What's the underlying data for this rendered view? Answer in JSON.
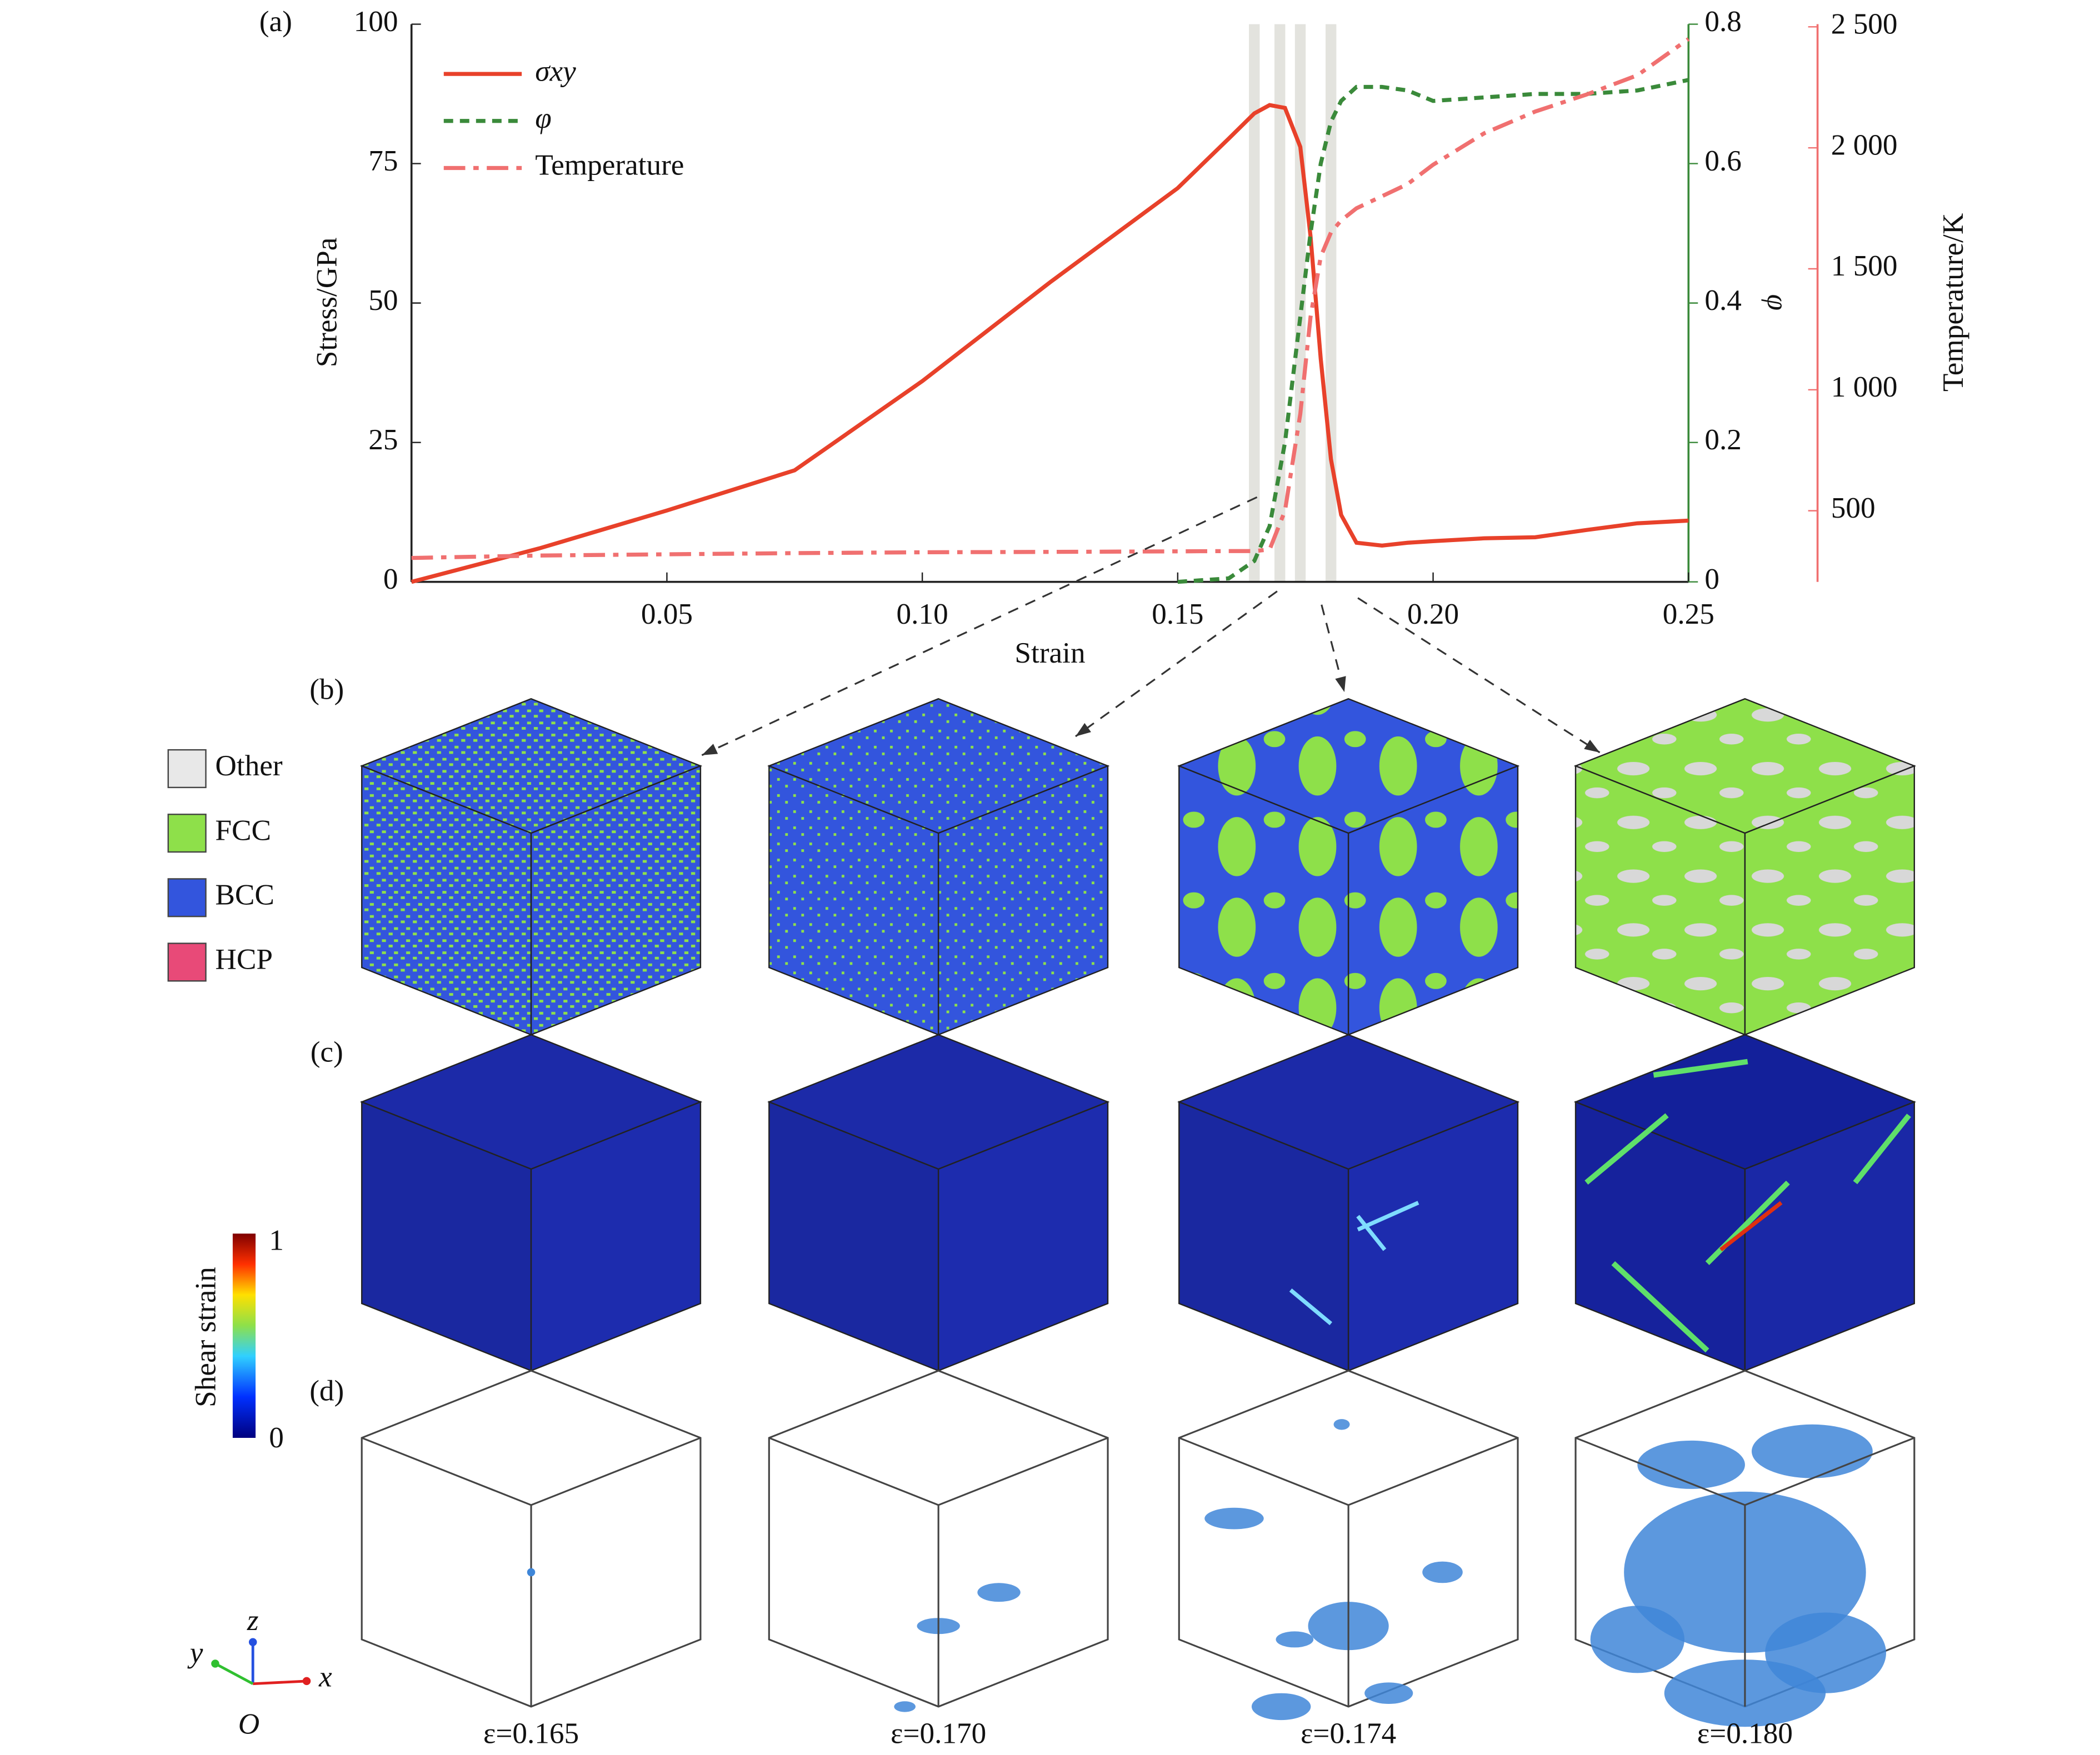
{
  "chart_data": {
    "type": "line",
    "x_label": "Strain",
    "y_label": "Stress/GPa",
    "y2_label": "φ",
    "y3_label": "Temperature/K",
    "x": [
      0,
      0.025,
      0.05,
      0.075,
      0.1,
      0.125,
      0.15,
      0.16,
      0.165,
      0.168,
      0.171,
      0.174,
      0.176,
      0.178,
      0.18,
      0.182,
      0.185,
      0.19,
      0.195,
      0.2,
      0.21,
      0.22,
      0.23,
      0.24,
      0.25
    ],
    "series": [
      {
        "name": "σxy",
        "color": "#e8412a",
        "style": "solid",
        "axis": "y",
        "values": [
          0,
          6,
          12.8,
          20,
          36,
          53.7,
          70.6,
          79.5,
          84,
          85.5,
          85,
          78,
          62,
          40,
          22,
          12,
          7,
          6.5,
          7,
          7.3,
          7.8,
          8,
          9.3,
          10.5,
          11
        ]
      },
      {
        "name": "φ",
        "color": "#3a8a3a",
        "style": "dashed",
        "axis": "y2",
        "values": [
          null,
          null,
          null,
          null,
          null,
          null,
          0,
          0.005,
          0.03,
          0.08,
          0.2,
          0.38,
          0.5,
          0.6,
          0.66,
          0.69,
          0.71,
          0.71,
          0.705,
          0.69,
          0.695,
          0.7,
          0.7,
          0.705,
          0.72
        ]
      },
      {
        "name": "Temperature",
        "color": "#f07070",
        "style": "dashdot",
        "axis": "y3",
        "values": [
          305,
          315,
          320,
          325,
          328,
          330,
          332,
          333,
          333,
          340,
          500,
          900,
          1300,
          1550,
          1650,
          1700,
          1750,
          1800,
          1850,
          1930,
          2060,
          2150,
          2220,
          2300,
          2450
        ]
      }
    ],
    "xlim": [
      0,
      0.25
    ],
    "xticks": [
      0.05,
      {
        "value": 0.1,
        "label": "0.10"
      },
      0.15,
      {
        "value": 0.2,
        "label": "0.20"
      },
      0.25
    ],
    "ylim": [
      0,
      100
    ],
    "yticks": [
      0,
      25,
      50,
      75,
      100
    ],
    "y2lim": [
      0,
      0.8
    ],
    "y2ticks": [
      0,
      0.2,
      0.4,
      0.6,
      0.8
    ],
    "y3lim": [
      206,
      2511
    ],
    "y3ticks": [
      500,
      {
        "value": 1000,
        "label": "1 000"
      },
      {
        "value": 1500,
        "label": "1 500"
      },
      {
        "value": 2000,
        "label": "2 000"
      },
      {
        "value": 2500,
        "label": "2 500"
      }
    ],
    "highlights": [
      0.165,
      0.17,
      0.174,
      0.18
    ],
    "legend": "upper left",
    "grid": false
  },
  "panel_labels": [
    "(a)",
    "(b)",
    "(c)",
    "(d)"
  ],
  "phase_legend": [
    {
      "name": "Other",
      "color": "#e8e8e8"
    },
    {
      "name": "FCC",
      "color": "#8ee04a"
    },
    {
      "name": "BCC",
      "color": "#3355dd"
    },
    {
      "name": "HCP",
      "color": "#e84a78"
    }
  ],
  "colorbar": {
    "title": "Shear strain",
    "range": [
      0,
      1
    ]
  },
  "axes_triad": {
    "x": "x",
    "y": "y",
    "z": "z",
    "origin": "O"
  },
  "snapshot_captions": [
    "ε=0.165",
    "ε=0.170",
    "ε=0.174",
    "ε=0.180"
  ]
}
